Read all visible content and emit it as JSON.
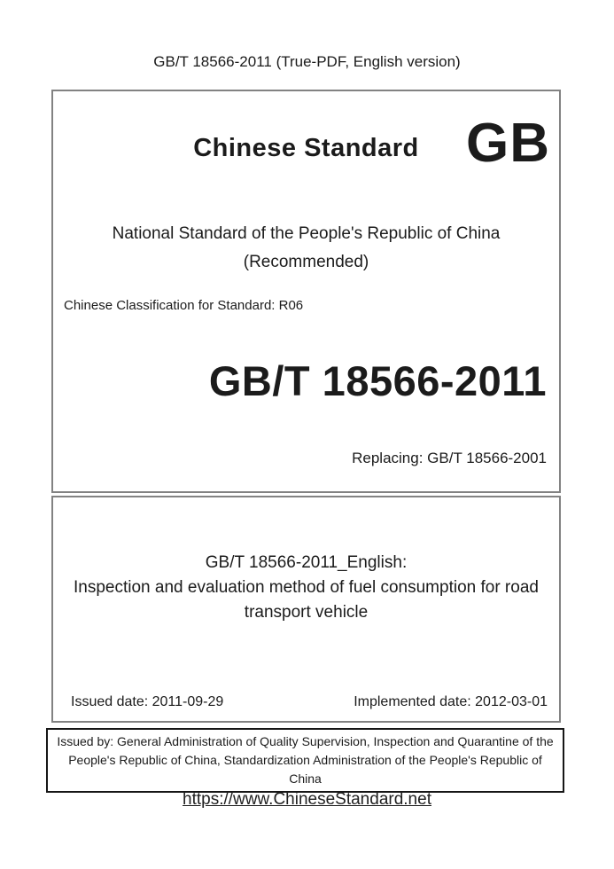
{
  "header": {
    "title": "GB/T 18566-2011 (True-PDF, English version)"
  },
  "cover": {
    "brand": "Chinese Standard",
    "gb_logo": "GB",
    "national_standard_line": "National Standard of the People's Republic of China",
    "recommended_line": "(Recommended)",
    "classification": "Chinese Classification for Standard: R06",
    "standard_code": "GB/T 18566-2011",
    "replacing_note": "Replacing: GB/T 18566-2001"
  },
  "title_section": {
    "english_label": "GB/T 18566-2011_English:",
    "english_title": "Inspection and evaluation method of fuel consumption for road transport vehicle",
    "issued_date": "Issued date: 2011-09-29",
    "implemented_date": "Implemented date: 2012-03-01"
  },
  "issuer": {
    "text": "Issued by: General Administration of Quality Supervision, Inspection and Quarantine of the People's Republic of China, Standardization Administration of the People's Republic of China"
  },
  "footer": {
    "url_label": "https://www.ChineseStandard.net"
  },
  "colors": {
    "box_border_gray": "#828282",
    "issuer_border_black": "#161616",
    "text": "#1b1b1b"
  }
}
